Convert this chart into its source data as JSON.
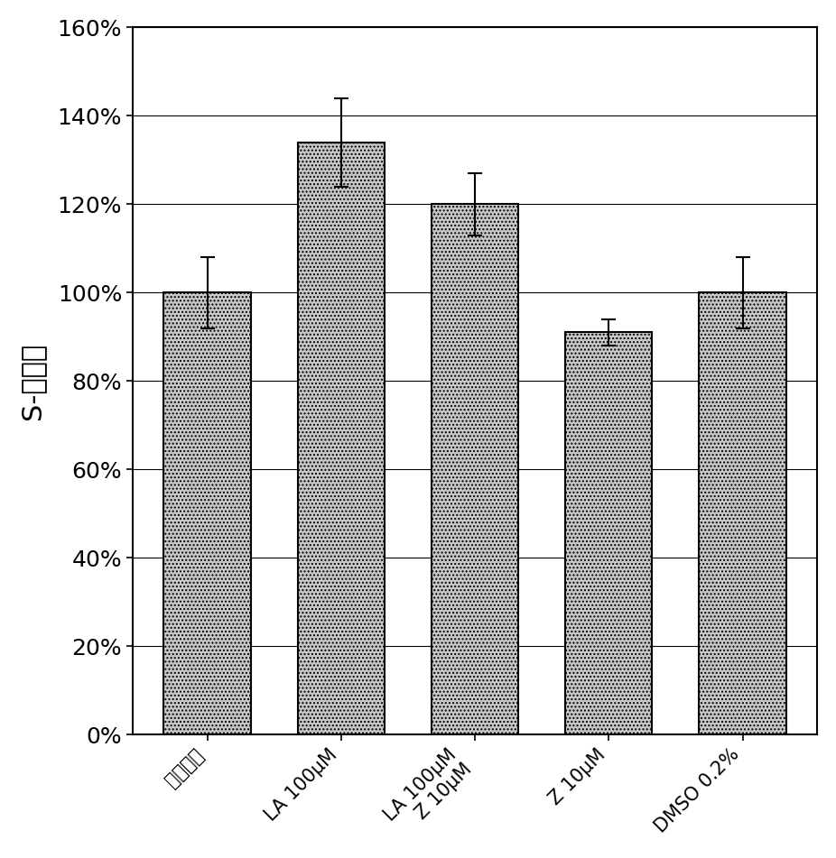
{
  "categories": [
    "未处理的",
    "LA 100μM",
    "LA 100μM\nZ 10μM",
    "Z 10μM",
    "DMSO 0.2%"
  ],
  "values": [
    100,
    134,
    120,
    91,
    100
  ],
  "errors": [
    8,
    10,
    7,
    3,
    8
  ],
  "ylim": [
    0,
    160
  ],
  "yticks": [
    0,
    20,
    40,
    60,
    80,
    100,
    120,
    140,
    160
  ],
  "ytick_labels": [
    "0%",
    "20%",
    "40%",
    "60%",
    "80%",
    "100%",
    "120%",
    "140%",
    "160%"
  ],
  "ylabel": "S-相增殖",
  "bar_color": "#c8c8c8",
  "bar_edgecolor": "#000000",
  "hatch": "....",
  "background_color": "#ffffff",
  "bar_width": 0.65,
  "title": ""
}
